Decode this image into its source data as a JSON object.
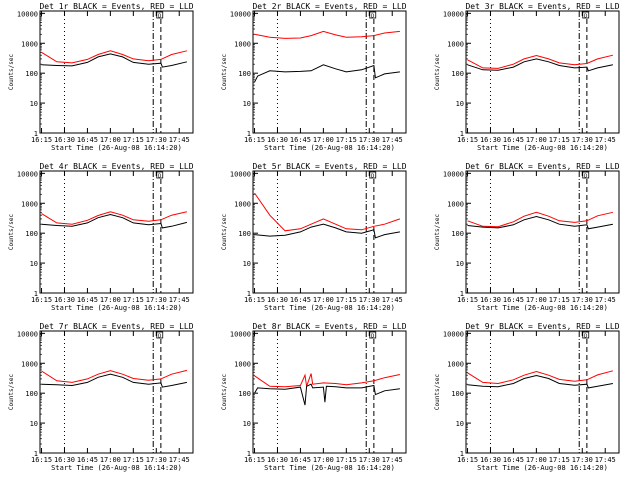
{
  "figure": {
    "xlabel": "Start Time (26-Aug-08 16:14:20)",
    "ylabel": "Counts/sec"
  },
  "chart_data": [
    {
      "type": "line",
      "title": "Det 1r BLACK = Events, RED = LLD",
      "xlabel": "Start Time (26-Aug-08 16:14:20)",
      "ylabel": "Counts/sec",
      "xticks": [
        "16:15",
        "16:30",
        "16:45",
        "17:00",
        "17:15",
        "17:30",
        "17:45"
      ],
      "yticks": [
        "1",
        "10",
        "100",
        "1000",
        "10000"
      ],
      "ylim": [
        1,
        12000
      ],
      "yscale": "log",
      "annotation": "D",
      "series": [
        {
          "name": "Events",
          "color": "#000000",
          "x": [
            "16:15",
            "16:25",
            "16:35",
            "16:45",
            "16:52",
            "17:00",
            "17:08",
            "17:15",
            "17:25",
            "17:33",
            "17:34",
            "17:40",
            "17:50"
          ],
          "values": [
            190,
            180,
            175,
            230,
            350,
            440,
            350,
            230,
            200,
            215,
            160,
            180,
            240
          ]
        },
        {
          "name": "LLD",
          "color": "#ff0000",
          "x": [
            "16:15",
            "16:25",
            "16:35",
            "16:45",
            "16:52",
            "17:00",
            "17:08",
            "17:15",
            "17:25",
            "17:33",
            "17:40",
            "17:50"
          ],
          "values": [
            500,
            240,
            220,
            290,
            420,
            560,
            420,
            300,
            260,
            290,
            420,
            560
          ]
        }
      ]
    },
    {
      "type": "line",
      "title": "Det 2r BLACK = Events, RED = LLD",
      "xlabel": "Start Time (26-Aug-08 16:14:20)",
      "ylabel": "Counts/sec",
      "xticks": [
        "16:15",
        "16:30",
        "16:45",
        "17:00",
        "17:15",
        "17:30",
        "17:45"
      ],
      "yticks": [
        "1",
        "10",
        "100",
        "1000",
        "10000"
      ],
      "ylim": [
        1,
        12000
      ],
      "yscale": "log",
      "annotation": "D",
      "series": [
        {
          "name": "Events",
          "color": "#000000",
          "x": [
            "16:15",
            "16:17",
            "16:25",
            "16:35",
            "16:45",
            "16:52",
            "17:00",
            "17:08",
            "17:15",
            "17:25",
            "17:33",
            "17:34",
            "17:40",
            "17:50"
          ],
          "values": [
            50,
            80,
            120,
            110,
            115,
            120,
            190,
            140,
            110,
            130,
            180,
            70,
            95,
            110
          ]
        },
        {
          "name": "LLD",
          "color": "#ff0000",
          "x": [
            "16:15",
            "16:25",
            "16:35",
            "16:45",
            "16:52",
            "17:00",
            "17:08",
            "17:15",
            "17:25",
            "17:33",
            "17:40",
            "17:50"
          ],
          "values": [
            2000,
            1600,
            1450,
            1500,
            1800,
            2500,
            1900,
            1600,
            1650,
            1800,
            2200,
            2500
          ]
        }
      ]
    },
    {
      "type": "line",
      "title": "Det 3r BLACK = Events, RED = LLD",
      "xlabel": "Start Time (26-Aug-08 16:14:20)",
      "ylabel": "Counts/sec",
      "xticks": [
        "16:15",
        "16:30",
        "16:45",
        "17:00",
        "17:15",
        "17:30",
        "17:45"
      ],
      "yticks": [
        "1",
        "10",
        "100",
        "1000",
        "10000"
      ],
      "ylim": [
        1,
        12000
      ],
      "yscale": "log",
      "annotation": "D",
      "series": [
        {
          "name": "Events",
          "color": "#000000",
          "x": [
            "16:15",
            "16:25",
            "16:35",
            "16:45",
            "16:52",
            "17:00",
            "17:08",
            "17:15",
            "17:25",
            "17:33",
            "17:34",
            "17:40",
            "17:50"
          ],
          "values": [
            190,
            130,
            125,
            160,
            240,
            300,
            240,
            180,
            150,
            160,
            120,
            150,
            190
          ]
        },
        {
          "name": "LLD",
          "color": "#ff0000",
          "x": [
            "16:15",
            "16:25",
            "16:35",
            "16:45",
            "16:52",
            "17:00",
            "17:08",
            "17:15",
            "17:25",
            "17:33",
            "17:40",
            "17:50"
          ],
          "values": [
            280,
            150,
            145,
            200,
            300,
            390,
            300,
            220,
            190,
            210,
            300,
            400
          ]
        }
      ]
    },
    {
      "type": "line",
      "title": "Det 4r BLACK = Events, RED = LLD",
      "xlabel": "Start Time (26-Aug-08 16:14:20)",
      "ylabel": "Counts/sec",
      "xticks": [
        "16:15",
        "16:30",
        "16:45",
        "17:00",
        "17:15",
        "17:30",
        "17:45"
      ],
      "yticks": [
        "1",
        "10",
        "100",
        "1000",
        "10000"
      ],
      "ylim": [
        1,
        12000
      ],
      "yscale": "log",
      "annotation": "D",
      "series": [
        {
          "name": "Events",
          "color": "#000000",
          "x": [
            "16:15",
            "16:25",
            "16:35",
            "16:45",
            "16:52",
            "17:00",
            "17:08",
            "17:15",
            "17:25",
            "17:33",
            "17:34",
            "17:40",
            "17:50"
          ],
          "values": [
            200,
            180,
            170,
            220,
            330,
            420,
            330,
            220,
            190,
            210,
            150,
            170,
            230
          ]
        },
        {
          "name": "LLD",
          "color": "#ff0000",
          "x": [
            "16:15",
            "16:25",
            "16:35",
            "16:45",
            "16:52",
            "17:00",
            "17:08",
            "17:15",
            "17:25",
            "17:33",
            "17:40",
            "17:50"
          ],
          "values": [
            450,
            220,
            200,
            270,
            390,
            520,
            400,
            280,
            250,
            280,
            400,
            520
          ]
        }
      ]
    },
    {
      "type": "line",
      "title": "Det 5r BLACK = Events, RED = LLD",
      "xlabel": "Start Time (26-Aug-08 16:14:20)",
      "ylabel": "Counts/sec",
      "xticks": [
        "16:15",
        "16:30",
        "16:45",
        "17:00",
        "17:15",
        "17:30",
        "17:45"
      ],
      "yticks": [
        "1",
        "10",
        "100",
        "1000",
        "10000"
      ],
      "ylim": [
        1,
        12000
      ],
      "yscale": "log",
      "annotation": "D",
      "series": [
        {
          "name": "Events",
          "color": "#000000",
          "x": [
            "16:15",
            "16:25",
            "16:35",
            "16:45",
            "16:52",
            "17:00",
            "17:08",
            "17:15",
            "17:25",
            "17:33",
            "17:34",
            "17:40",
            "17:50"
          ],
          "values": [
            90,
            80,
            85,
            110,
            160,
            200,
            150,
            110,
            100,
            130,
            70,
            90,
            110
          ]
        },
        {
          "name": "LLD",
          "color": "#ff0000",
          "x": [
            "16:15",
            "16:25",
            "16:35",
            "16:45",
            "16:52",
            "17:00",
            "17:08",
            "17:15",
            "17:25",
            "17:33",
            "17:40",
            "17:50"
          ],
          "values": [
            2200,
            400,
            120,
            140,
            200,
            300,
            200,
            140,
            130,
            170,
            200,
            300
          ]
        }
      ]
    },
    {
      "type": "line",
      "title": "Det 6r BLACK = Events, RED = LLD",
      "xlabel": "Start Time (26-Aug-08 16:14:20)",
      "ylabel": "Counts/sec",
      "xticks": [
        "16:15",
        "16:30",
        "16:45",
        "17:00",
        "17:15",
        "17:30",
        "17:45"
      ],
      "yticks": [
        "1",
        "10",
        "100",
        "1000",
        "10000"
      ],
      "ylim": [
        1,
        12000
      ],
      "yscale": "log",
      "annotation": "D",
      "series": [
        {
          "name": "Events",
          "color": "#000000",
          "x": [
            "16:15",
            "16:25",
            "16:35",
            "16:45",
            "16:52",
            "17:00",
            "17:08",
            "17:15",
            "17:25",
            "17:33",
            "17:34",
            "17:40",
            "17:50"
          ],
          "values": [
            180,
            160,
            150,
            190,
            280,
            360,
            280,
            200,
            170,
            190,
            140,
            160,
            200
          ]
        },
        {
          "name": "LLD",
          "color": "#ff0000",
          "x": [
            "16:15",
            "16:25",
            "16:35",
            "16:45",
            "16:52",
            "17:00",
            "17:08",
            "17:15",
            "17:25",
            "17:33",
            "17:40",
            "17:50"
          ],
          "values": [
            260,
            170,
            165,
            240,
            370,
            500,
            370,
            260,
            230,
            260,
            380,
            500
          ]
        }
      ]
    },
    {
      "type": "line",
      "title": "Det 7r BLACK = Events, RED = LLD",
      "xlabel": "Start Time (26-Aug-08 16:14:20)",
      "ylabel": "Counts/sec",
      "xticks": [
        "16:15",
        "16:30",
        "16:45",
        "17:00",
        "17:15",
        "17:30",
        "17:45"
      ],
      "yticks": [
        "1",
        "10",
        "100",
        "1000",
        "10000"
      ],
      "ylim": [
        1,
        12000
      ],
      "yscale": "log",
      "annotation": "D",
      "series": [
        {
          "name": "Events",
          "color": "#000000",
          "x": [
            "16:15",
            "16:25",
            "16:35",
            "16:45",
            "16:52",
            "17:00",
            "17:08",
            "17:15",
            "17:25",
            "17:33",
            "17:34",
            "17:40",
            "17:50"
          ],
          "values": [
            200,
            190,
            180,
            230,
            340,
            430,
            340,
            230,
            200,
            220,
            160,
            180,
            230
          ]
        },
        {
          "name": "LLD",
          "color": "#ff0000",
          "x": [
            "16:15",
            "16:25",
            "16:35",
            "16:45",
            "16:52",
            "17:00",
            "17:08",
            "17:15",
            "17:25",
            "17:33",
            "17:40",
            "17:50"
          ],
          "values": [
            550,
            260,
            230,
            300,
            430,
            570,
            430,
            310,
            270,
            300,
            430,
            580
          ]
        }
      ]
    },
    {
      "type": "line",
      "title": "Det 8r BLACK = Events, RED = LLD",
      "xlabel": "Start Time (26-Aug-08 16:14:20)",
      "ylabel": "Counts/sec",
      "xticks": [
        "16:15",
        "16:30",
        "16:45",
        "17:00",
        "17:15",
        "17:30",
        "17:45"
      ],
      "yticks": [
        "1",
        "10",
        "100",
        "1000",
        "10000"
      ],
      "ylim": [
        1,
        12000
      ],
      "yscale": "log",
      "annotation": "D",
      "series": [
        {
          "name": "Events",
          "color": "#000000",
          "x": [
            "16:15",
            "16:17",
            "16:25",
            "16:35",
            "16:45",
            "16:48",
            "16:49",
            "16:52",
            "16:53",
            "17:00",
            "17:01",
            "17:02",
            "17:08",
            "17:15",
            "17:25",
            "17:33",
            "17:34",
            "17:40",
            "17:50"
          ],
          "values": [
            100,
            150,
            140,
            135,
            160,
            40,
            170,
            200,
            150,
            160,
            50,
            170,
            165,
            150,
            150,
            180,
            90,
            120,
            140
          ]
        },
        {
          "name": "LLD",
          "color": "#ff0000",
          "x": [
            "16:15",
            "16:25",
            "16:35",
            "16:45",
            "16:48",
            "16:49",
            "16:52",
            "16:53",
            "17:00",
            "17:08",
            "17:15",
            "17:25",
            "17:33",
            "17:40",
            "17:50"
          ],
          "values": [
            380,
            170,
            165,
            180,
            400,
            170,
            450,
            200,
            220,
            210,
            190,
            220,
            260,
            330,
            420
          ]
        }
      ]
    },
    {
      "type": "line",
      "title": "Det 9r BLACK = Events, RED = LLD",
      "xlabel": "Start Time (26-Aug-08 16:14:20)",
      "ylabel": "Counts/sec",
      "xticks": [
        "16:15",
        "16:30",
        "16:45",
        "17:00",
        "17:15",
        "17:30",
        "17:45"
      ],
      "yticks": [
        "1",
        "10",
        "100",
        "1000",
        "10000"
      ],
      "ylim": [
        1,
        12000
      ],
      "yscale": "log",
      "annotation": "D",
      "series": [
        {
          "name": "Events",
          "color": "#000000",
          "x": [
            "16:15",
            "16:25",
            "16:35",
            "16:45",
            "16:52",
            "17:00",
            "17:08",
            "17:15",
            "17:25",
            "17:33",
            "17:34",
            "17:40",
            "17:50"
          ],
          "values": [
            190,
            170,
            165,
            210,
            310,
            390,
            310,
            210,
            185,
            200,
            150,
            170,
            210
          ]
        },
        {
          "name": "LLD",
          "color": "#ff0000",
          "x": [
            "16:15",
            "16:25",
            "16:35",
            "16:45",
            "16:52",
            "17:00",
            "17:08",
            "17:15",
            "17:25",
            "17:33",
            "17:40",
            "17:50"
          ],
          "values": [
            480,
            230,
            210,
            280,
            400,
            530,
            400,
            290,
            250,
            280,
            410,
            560
          ]
        }
      ]
    }
  ]
}
